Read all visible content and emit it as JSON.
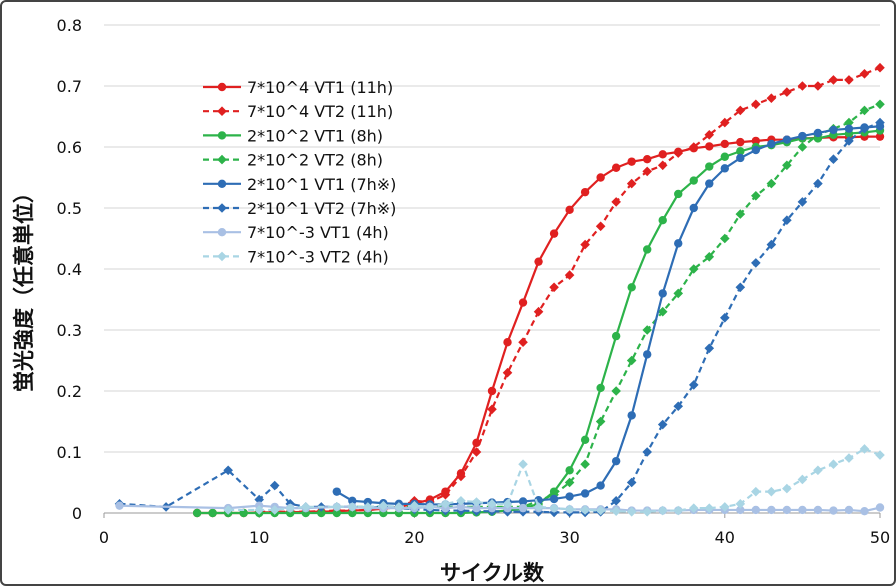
{
  "chart_data": {
    "type": "line",
    "title": "",
    "xlabel": "サイクル数",
    "ylabel": "蛍光強度（任意単位）",
    "xlim": [
      0,
      50
    ],
    "ylim": [
      0,
      0.8
    ],
    "xticks": [
      "0",
      "10",
      "20",
      "30",
      "40",
      "50"
    ],
    "yticks": [
      "0",
      "0.1",
      "0.2",
      "0.3",
      "0.4",
      "0.5",
      "0.6",
      "0.7",
      "0.8"
    ],
    "grid": "horizontal",
    "legend_position": "top-left",
    "series": [
      {
        "name": "7*10^4 VT1 (11h)",
        "color": "#e02020",
        "style": "solid",
        "marker": "circle",
        "x": [
          6,
          7,
          8,
          9,
          10,
          11,
          12,
          13,
          14,
          15,
          16,
          17,
          18,
          19,
          20,
          21,
          22,
          23,
          24,
          25,
          26,
          27,
          28,
          29,
          30,
          31,
          32,
          33,
          34,
          35,
          36,
          37,
          38,
          39,
          40,
          41,
          42,
          43,
          44,
          45,
          46,
          47,
          48,
          49,
          50
        ],
        "y": [
          0,
          0,
          0,
          0,
          0.001,
          0.001,
          0.001,
          0.002,
          0.002,
          0.003,
          0.004,
          0.005,
          0.007,
          0.01,
          0.015,
          0.022,
          0.035,
          0.065,
          0.115,
          0.2,
          0.28,
          0.345,
          0.412,
          0.458,
          0.497,
          0.526,
          0.55,
          0.566,
          0.576,
          0.58,
          0.588,
          0.592,
          0.598,
          0.601,
          0.605,
          0.608,
          0.61,
          0.612,
          0.612,
          0.614,
          0.615,
          0.616,
          0.616,
          0.617,
          0.617
        ]
      },
      {
        "name": "7*10^4 VT2 (11h)",
        "color": "#e02020",
        "style": "dashed",
        "marker": "diamond",
        "x": [
          10,
          11,
          12,
          13,
          14,
          15,
          16,
          17,
          18,
          19,
          20,
          21,
          22,
          23,
          24,
          25,
          26,
          27,
          28,
          29,
          30,
          31,
          32,
          33,
          34,
          35,
          36,
          37,
          38,
          39,
          40,
          41,
          42,
          43,
          44,
          45,
          46,
          47,
          48,
          49,
          50
        ],
        "y": [
          0.002,
          0.002,
          0.002,
          0.002,
          0.003,
          0.004,
          0.004,
          0.005,
          0.007,
          0.01,
          0.02,
          0.018,
          0.03,
          0.06,
          0.1,
          0.17,
          0.23,
          0.28,
          0.33,
          0.37,
          0.39,
          0.44,
          0.47,
          0.51,
          0.54,
          0.56,
          0.57,
          0.59,
          0.6,
          0.62,
          0.64,
          0.66,
          0.67,
          0.68,
          0.69,
          0.7,
          0.7,
          0.71,
          0.71,
          0.72,
          0.73
        ]
      },
      {
        "name": "2*10^2 VT1 (8h)",
        "color": "#2db34a",
        "style": "solid",
        "marker": "circle",
        "x": [
          6,
          7,
          8,
          9,
          10,
          11,
          12,
          13,
          14,
          15,
          16,
          17,
          18,
          19,
          20,
          21,
          22,
          23,
          24,
          25,
          26,
          27,
          28,
          29,
          30,
          31,
          32,
          33,
          34,
          35,
          36,
          37,
          38,
          39,
          40,
          41,
          42,
          43,
          44,
          45,
          46,
          47,
          48,
          49,
          50
        ],
        "y": [
          0,
          0,
          0,
          0,
          0,
          0,
          0,
          0,
          0,
          0,
          0,
          0,
          0,
          0,
          0,
          0,
          0,
          0,
          0.001,
          0.002,
          0.004,
          0.007,
          0.015,
          0.035,
          0.07,
          0.12,
          0.205,
          0.29,
          0.37,
          0.432,
          0.48,
          0.523,
          0.545,
          0.568,
          0.584,
          0.593,
          0.6,
          0.603,
          0.608,
          0.614,
          0.614,
          0.62,
          0.622,
          0.624,
          0.627
        ]
      },
      {
        "name": "2*10^2 VT2 (8h)",
        "color": "#2db34a",
        "style": "dashed",
        "marker": "diamond",
        "x": [
          15,
          16,
          17,
          18,
          19,
          20,
          21,
          22,
          23,
          24,
          25,
          26,
          27,
          28,
          29,
          30,
          31,
          32,
          33,
          34,
          35,
          36,
          37,
          38,
          39,
          40,
          41,
          42,
          43,
          44,
          45,
          46,
          47,
          48,
          49,
          50
        ],
        "y": [
          0.01,
          0.01,
          0.01,
          0.01,
          0.01,
          0.01,
          0.01,
          0.01,
          0.01,
          0.01,
          0.01,
          0.01,
          0.01,
          0.02,
          0.03,
          0.05,
          0.08,
          0.15,
          0.2,
          0.25,
          0.3,
          0.33,
          0.36,
          0.4,
          0.42,
          0.45,
          0.49,
          0.52,
          0.54,
          0.57,
          0.6,
          0.62,
          0.63,
          0.64,
          0.66,
          0.67
        ]
      },
      {
        "name": "2*10^1 VT1 (7h※)",
        "color": "#2e6db5",
        "style": "solid",
        "marker": "circle",
        "x": [
          15,
          16,
          17,
          18,
          19,
          20,
          21,
          22,
          23,
          24,
          25,
          26,
          27,
          28,
          29,
          30,
          31,
          32,
          33,
          34,
          35,
          36,
          37,
          38,
          39,
          40,
          41,
          42,
          43,
          44,
          45,
          46,
          47,
          48,
          49,
          50
        ],
        "y": [
          0.035,
          0.02,
          0.018,
          0.016,
          0.015,
          0.015,
          0.014,
          0.014,
          0.015,
          0.016,
          0.017,
          0.018,
          0.019,
          0.021,
          0.023,
          0.027,
          0.032,
          0.045,
          0.085,
          0.16,
          0.26,
          0.36,
          0.442,
          0.5,
          0.54,
          0.565,
          0.582,
          0.595,
          0.605,
          0.612,
          0.618,
          0.623,
          0.628,
          0.63,
          0.632,
          0.634
        ]
      },
      {
        "name": "2*10^1 VT2 (7h※)",
        "color": "#2e6db5",
        "style": "dashed",
        "marker": "diamond",
        "x": [
          1,
          4,
          8,
          10,
          11,
          12,
          13,
          14,
          15,
          16,
          17,
          18,
          19,
          20,
          21,
          22,
          23,
          24,
          25,
          26,
          27,
          28,
          29,
          30,
          31,
          32,
          33,
          34,
          35,
          36,
          37,
          38,
          39,
          40,
          41,
          42,
          43,
          44,
          45,
          46,
          47,
          48,
          49,
          50
        ],
        "y": [
          0.015,
          0.01,
          0.07,
          0.022,
          0.045,
          0.015,
          0.01,
          0.01,
          0.01,
          0.01,
          0.008,
          0.01,
          0.008,
          0.006,
          0.005,
          0.004,
          0.004,
          0.003,
          0.003,
          0.002,
          0.002,
          0.002,
          0.001,
          0.001,
          0.001,
          0.002,
          0.02,
          0.05,
          0.1,
          0.145,
          0.175,
          0.21,
          0.27,
          0.32,
          0.37,
          0.41,
          0.44,
          0.48,
          0.51,
          0.54,
          0.58,
          0.61,
          0.63,
          0.64
        ]
      },
      {
        "name": "7*10^-3 VT1 (4h)",
        "color": "#a9c0e4",
        "style": "solid",
        "marker": "circle",
        "x": [
          1,
          8,
          10,
          11,
          12,
          13,
          15,
          16,
          17,
          18,
          19,
          20,
          21,
          22,
          23,
          24,
          25,
          26,
          27,
          28,
          29,
          30,
          31,
          32,
          33,
          34,
          35,
          36,
          37,
          38,
          39,
          40,
          41,
          42,
          43,
          44,
          45,
          46,
          47,
          48,
          49,
          50
        ],
        "y": [
          0.012,
          0.008,
          0.012,
          0.01,
          0.008,
          0.008,
          0.01,
          0.01,
          0.008,
          0.008,
          0.008,
          0.008,
          0.01,
          0.008,
          0.01,
          0.008,
          0.008,
          0.008,
          0.008,
          0.008,
          0.008,
          0.006,
          0.006,
          0.006,
          0.006,
          0.004,
          0.004,
          0.004,
          0.004,
          0.005,
          0.005,
          0.005,
          0.005,
          0.005,
          0.005,
          0.005,
          0.005,
          0.005,
          0.004,
          0.005,
          0.003,
          0.009
        ]
      },
      {
        "name": "7*10^-3 VT2 (4h)",
        "color": "#a9d5e4",
        "style": "dashed",
        "marker": "diamond",
        "x": [
          8,
          10,
          11,
          12,
          13,
          15,
          16,
          17,
          18,
          19,
          20,
          21,
          22,
          23,
          24,
          25,
          26,
          27,
          28,
          29,
          30,
          31,
          32,
          33,
          34,
          35,
          36,
          37,
          38,
          39,
          40,
          41,
          42,
          43,
          44,
          45,
          46,
          47,
          48,
          49,
          50
        ],
        "y": [
          0.005,
          0.005,
          0.005,
          0.008,
          0.01,
          0.01,
          0.01,
          0.01,
          0.012,
          0.01,
          0.012,
          0.01,
          0.015,
          0.02,
          0.018,
          0.015,
          0.015,
          0.08,
          0.01,
          0.008,
          0.006,
          0.005,
          0.004,
          0.003,
          0.002,
          0.002,
          0.004,
          0.004,
          0.008,
          0.008,
          0.01,
          0.015,
          0.035,
          0.035,
          0.04,
          0.055,
          0.07,
          0.08,
          0.09,
          0.105,
          0.095
        ]
      }
    ]
  }
}
